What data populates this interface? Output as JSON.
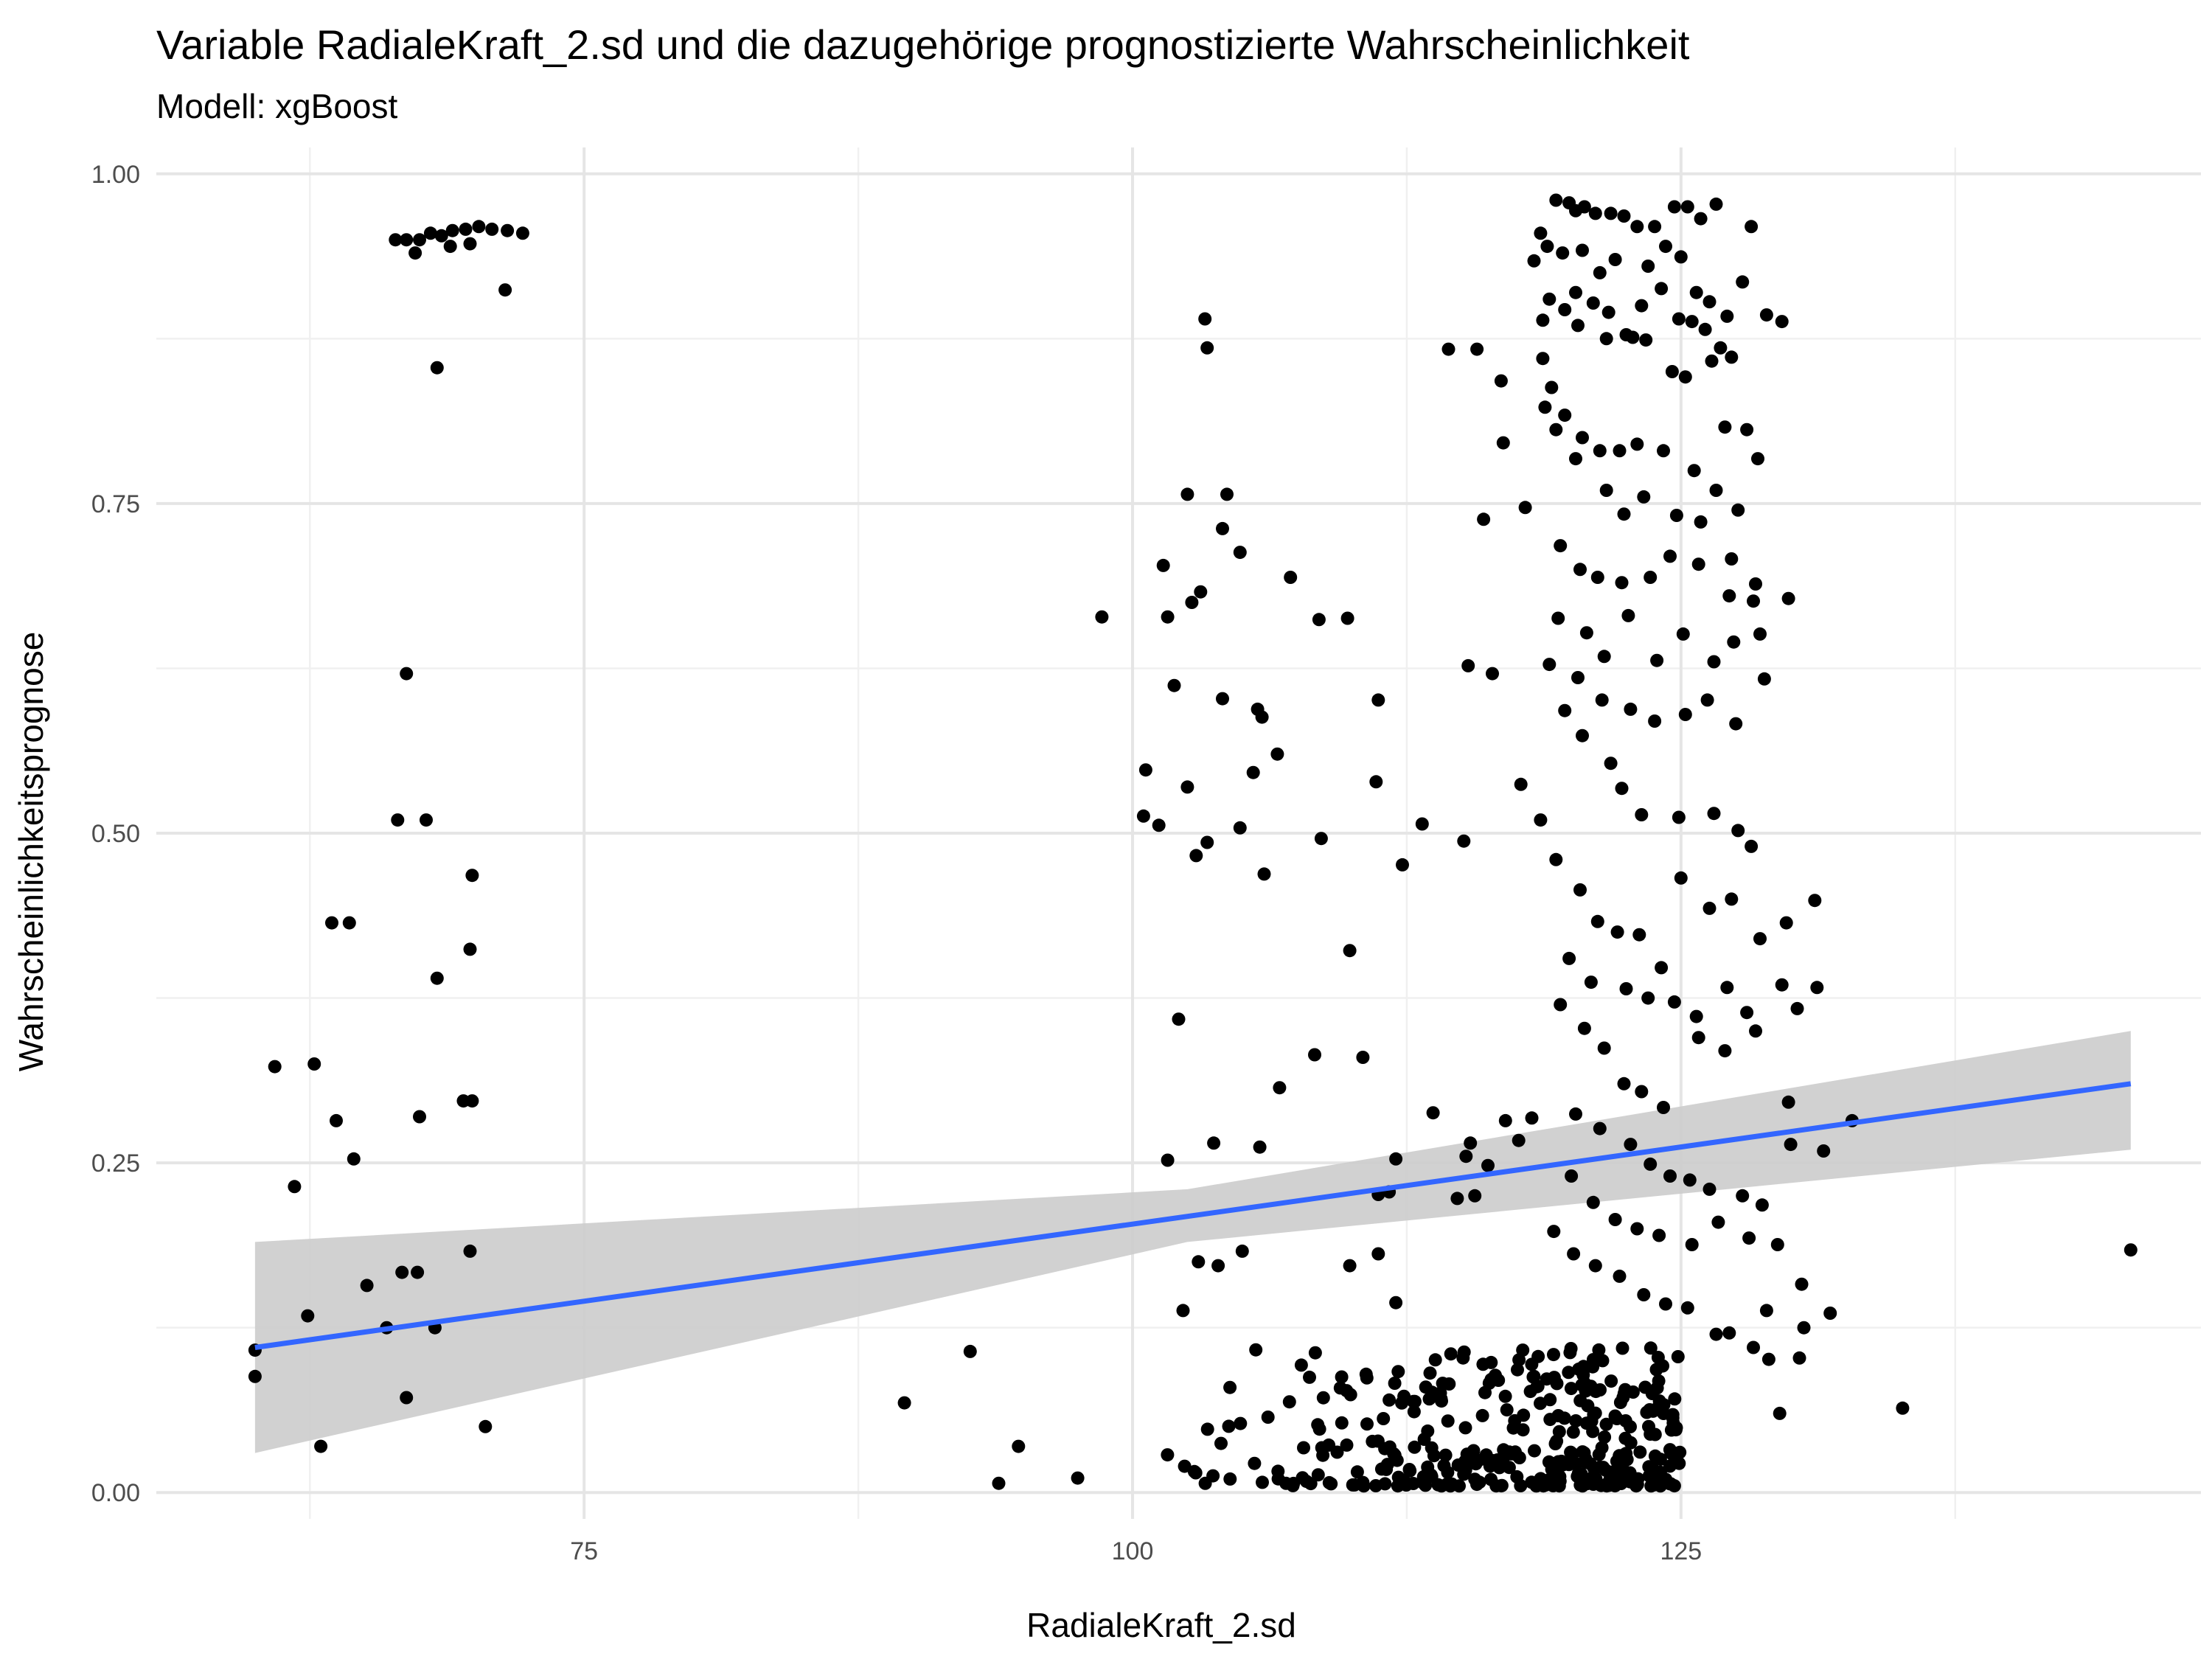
{
  "chart_data": {
    "type": "scatter",
    "title": "Variable RadialeKraft_2.sd und die dazugehörige prognostizierte Wahrscheinlichkeit",
    "subtitle": "Modell: xgBoost",
    "xlabel": "RadialeKraft_2.sd",
    "ylabel": "Wahrscheinlichkeitsprognose",
    "xlim": [
      55.5,
      148.7
    ],
    "ylim": [
      -0.02,
      1.02
    ],
    "x_ticks": [
      75,
      100,
      125
    ],
    "x_tick_labels": [
      "75",
      "100",
      "125"
    ],
    "y_ticks": [
      0,
      0.25,
      0.5,
      0.75,
      1
    ],
    "y_tick_labels": [
      "0.00",
      "0.25",
      "0.50",
      "0.75",
      "1.00"
    ],
    "grid": true,
    "point_color": "#000000",
    "trend_color": "#3366ff",
    "band_color": "#cccccc",
    "trend_line": {
      "x": [
        60,
        145.5
      ],
      "y": [
        0.11,
        0.31
      ]
    },
    "confidence_band": {
      "x": [
        60,
        102.5,
        145.5
      ],
      "lower": [
        0.03,
        0.19,
        0.26
      ],
      "upper": [
        0.19,
        0.23,
        0.35
      ]
    },
    "points": [
      [
        66.4,
        0.95
      ],
      [
        66.9,
        0.95
      ],
      [
        67.5,
        0.95
      ],
      [
        68.0,
        0.955
      ],
      [
        68.5,
        0.953
      ],
      [
        69.0,
        0.957
      ],
      [
        69.6,
        0.958
      ],
      [
        70.2,
        0.96
      ],
      [
        70.8,
        0.958
      ],
      [
        71.5,
        0.957
      ],
      [
        72.2,
        0.955
      ],
      [
        67.3,
        0.94
      ],
      [
        68.9,
        0.945
      ],
      [
        69.8,
        0.947
      ],
      [
        71.4,
        0.912
      ],
      [
        68.3,
        0.853
      ],
      [
        66.9,
        0.621
      ],
      [
        66.5,
        0.51
      ],
      [
        67.8,
        0.51
      ],
      [
        69.9,
        0.468
      ],
      [
        69.8,
        0.412
      ],
      [
        68.3,
        0.39
      ],
      [
        63.5,
        0.432
      ],
      [
        64.3,
        0.432
      ],
      [
        60.9,
        0.323
      ],
      [
        62.7,
        0.325
      ],
      [
        63.7,
        0.282
      ],
      [
        64.5,
        0.253
      ],
      [
        61.8,
        0.232
      ],
      [
        69.5,
        0.297
      ],
      [
        69.9,
        0.297
      ],
      [
        67.5,
        0.285
      ],
      [
        69.8,
        0.183
      ],
      [
        66.7,
        0.167
      ],
      [
        67.4,
        0.167
      ],
      [
        65.1,
        0.157
      ],
      [
        66.0,
        0.125
      ],
      [
        68.2,
        0.125
      ],
      [
        60.0,
        0.108
      ],
      [
        60.0,
        0.088
      ],
      [
        62.4,
        0.134
      ],
      [
        66.9,
        0.072
      ],
      [
        70.5,
        0.05
      ],
      [
        63.0,
        0.035
      ],
      [
        98.6,
        0.664
      ],
      [
        102.5,
        0.757
      ],
      [
        104.3,
        0.757
      ],
      [
        103.3,
        0.89
      ],
      [
        103.4,
        0.868
      ],
      [
        103.1,
        0.683
      ],
      [
        102.7,
        0.675
      ],
      [
        101.4,
        0.703
      ],
      [
        101.6,
        0.664
      ],
      [
        104.9,
        0.713
      ],
      [
        104.1,
        0.731
      ],
      [
        107.2,
        0.694
      ],
      [
        108.5,
        0.662
      ],
      [
        109.8,
        0.663
      ],
      [
        101.9,
        0.612
      ],
      [
        104.1,
        0.602
      ],
      [
        105.7,
        0.594
      ],
      [
        105.9,
        0.588
      ],
      [
        106.6,
        0.56
      ],
      [
        100.6,
        0.548
      ],
      [
        102.5,
        0.535
      ],
      [
        105.5,
        0.546
      ],
      [
        100.5,
        0.513
      ],
      [
        101.2,
        0.506
      ],
      [
        103.4,
        0.493
      ],
      [
        102.9,
        0.483
      ],
      [
        104.9,
        0.504
      ],
      [
        108.6,
        0.496
      ],
      [
        106.0,
        0.469
      ],
      [
        111.2,
        0.601
      ],
      [
        111.1,
        0.539
      ],
      [
        113.2,
        0.507
      ],
      [
        112.3,
        0.476
      ],
      [
        115.1,
        0.494
      ],
      [
        109.9,
        0.411
      ],
      [
        102.1,
        0.359
      ],
      [
        108.3,
        0.332
      ],
      [
        110.5,
        0.33
      ],
      [
        106.7,
        0.307
      ],
      [
        101.6,
        0.252
      ],
      [
        103.7,
        0.265
      ],
      [
        105.8,
        0.262
      ],
      [
        113.7,
        0.288
      ],
      [
        112.0,
        0.253
      ],
      [
        103.0,
        0.175
      ],
      [
        103.9,
        0.172
      ],
      [
        105.0,
        0.183
      ],
      [
        111.7,
        0.228
      ],
      [
        111.2,
        0.226
      ],
      [
        109.9,
        0.172
      ],
      [
        111.2,
        0.181
      ],
      [
        112.0,
        0.144
      ],
      [
        102.3,
        0.138
      ],
      [
        92.6,
        0.107
      ],
      [
        89.6,
        0.068
      ],
      [
        94.8,
        0.035
      ],
      [
        93.9,
        0.007
      ],
      [
        97.5,
        0.011
      ],
      [
        114.4,
        0.867
      ],
      [
        115.7,
        0.867
      ],
      [
        116.0,
        0.738
      ],
      [
        116.9,
        0.796
      ],
      [
        116.4,
        0.621
      ],
      [
        115.3,
        0.627
      ],
      [
        117.9,
        0.747
      ],
      [
        118.7,
        0.86
      ],
      [
        119.1,
        0.838
      ],
      [
        116.8,
        0.843
      ],
      [
        117.7,
        0.537
      ],
      [
        117.0,
        0.282
      ],
      [
        115.4,
        0.265
      ],
      [
        115.2,
        0.255
      ],
      [
        116.2,
        0.248
      ],
      [
        114.8,
        0.223
      ],
      [
        115.6,
        0.225
      ],
      [
        117.6,
        0.267
      ],
      [
        118.2,
        0.284
      ],
      [
        119.3,
        0.98
      ],
      [
        119.9,
        0.978
      ],
      [
        120.2,
        0.972
      ],
      [
        120.6,
        0.975
      ],
      [
        121.1,
        0.97
      ],
      [
        121.8,
        0.97
      ],
      [
        122.4,
        0.968
      ],
      [
        123.0,
        0.96
      ],
      [
        123.8,
        0.96
      ],
      [
        124.7,
        0.975
      ],
      [
        125.3,
        0.975
      ],
      [
        125.9,
        0.966
      ],
      [
        126.6,
        0.977
      ],
      [
        128.2,
        0.96
      ],
      [
        118.6,
        0.955
      ],
      [
        118.9,
        0.945
      ],
      [
        119.6,
        0.94
      ],
      [
        120.5,
        0.942
      ],
      [
        121.3,
        0.925
      ],
      [
        122.0,
        0.935
      ],
      [
        123.5,
        0.93
      ],
      [
        124.3,
        0.945
      ],
      [
        125.0,
        0.937
      ],
      [
        125.7,
        0.91
      ],
      [
        126.3,
        0.903
      ],
      [
        127.1,
        0.892
      ],
      [
        127.8,
        0.918
      ],
      [
        118.3,
        0.934
      ],
      [
        119.0,
        0.905
      ],
      [
        119.7,
        0.897
      ],
      [
        120.2,
        0.91
      ],
      [
        121.0,
        0.902
      ],
      [
        121.7,
        0.895
      ],
      [
        122.5,
        0.878
      ],
      [
        123.2,
        0.9
      ],
      [
        124.1,
        0.913
      ],
      [
        124.9,
        0.89
      ],
      [
        125.5,
        0.888
      ],
      [
        126.1,
        0.882
      ],
      [
        126.8,
        0.868
      ],
      [
        127.3,
        0.861
      ],
      [
        128.9,
        0.893
      ],
      [
        129.6,
        0.888
      ],
      [
        118.7,
        0.889
      ],
      [
        120.3,
        0.885
      ],
      [
        121.6,
        0.875
      ],
      [
        122.8,
        0.876
      ],
      [
        123.4,
        0.874
      ],
      [
        124.6,
        0.85
      ],
      [
        125.2,
        0.846
      ],
      [
        126.4,
        0.858
      ],
      [
        127.0,
        0.808
      ],
      [
        128.0,
        0.806
      ],
      [
        118.8,
        0.823
      ],
      [
        119.7,
        0.817
      ],
      [
        120.5,
        0.8
      ],
      [
        121.3,
        0.79
      ],
      [
        122.2,
        0.79
      ],
      [
        123.0,
        0.795
      ],
      [
        124.2,
        0.79
      ],
      [
        125.6,
        0.775
      ],
      [
        126.6,
        0.76
      ],
      [
        127.6,
        0.745
      ],
      [
        128.5,
        0.784
      ],
      [
        119.3,
        0.806
      ],
      [
        120.2,
        0.784
      ],
      [
        121.6,
        0.76
      ],
      [
        122.4,
        0.742
      ],
      [
        123.3,
        0.755
      ],
      [
        124.8,
        0.741
      ],
      [
        125.9,
        0.736
      ],
      [
        127.3,
        0.708
      ],
      [
        128.4,
        0.689
      ],
      [
        129.9,
        0.678
      ],
      [
        119.5,
        0.718
      ],
      [
        120.4,
        0.7
      ],
      [
        121.2,
        0.694
      ],
      [
        122.3,
        0.69
      ],
      [
        123.6,
        0.694
      ],
      [
        124.5,
        0.71
      ],
      [
        125.8,
        0.704
      ],
      [
        127.2,
        0.68
      ],
      [
        128.3,
        0.676
      ],
      [
        119.4,
        0.663
      ],
      [
        120.7,
        0.652
      ],
      [
        121.5,
        0.634
      ],
      [
        122.6,
        0.665
      ],
      [
        123.9,
        0.631
      ],
      [
        125.1,
        0.651
      ],
      [
        126.5,
        0.63
      ],
      [
        127.4,
        0.645
      ],
      [
        128.6,
        0.651
      ],
      [
        119.0,
        0.628
      ],
      [
        120.3,
        0.618
      ],
      [
        121.4,
        0.601
      ],
      [
        122.7,
        0.594
      ],
      [
        123.8,
        0.585
      ],
      [
        125.2,
        0.59
      ],
      [
        126.2,
        0.601
      ],
      [
        127.5,
        0.583
      ],
      [
        128.8,
        0.617
      ],
      [
        119.7,
        0.593
      ],
      [
        120.5,
        0.574
      ],
      [
        121.8,
        0.553
      ],
      [
        122.3,
        0.534
      ],
      [
        123.2,
        0.514
      ],
      [
        124.9,
        0.512
      ],
      [
        126.5,
        0.515
      ],
      [
        127.6,
        0.502
      ],
      [
        128.2,
        0.49
      ],
      [
        118.6,
        0.51
      ],
      [
        119.3,
        0.48
      ],
      [
        120.4,
        0.457
      ],
      [
        121.2,
        0.433
      ],
      [
        122.1,
        0.425
      ],
      [
        123.1,
        0.423
      ],
      [
        124.1,
        0.398
      ],
      [
        125.0,
        0.466
      ],
      [
        126.3,
        0.443
      ],
      [
        127.3,
        0.45
      ],
      [
        128.6,
        0.42
      ],
      [
        129.8,
        0.432
      ],
      [
        131.1,
        0.449
      ],
      [
        119.9,
        0.405
      ],
      [
        120.9,
        0.387
      ],
      [
        122.5,
        0.382
      ],
      [
        123.5,
        0.375
      ],
      [
        124.7,
        0.372
      ],
      [
        125.7,
        0.361
      ],
      [
        127.1,
        0.383
      ],
      [
        128.0,
        0.364
      ],
      [
        129.6,
        0.385
      ],
      [
        130.3,
        0.367
      ],
      [
        131.2,
        0.383
      ],
      [
        119.5,
        0.37
      ],
      [
        120.6,
        0.352
      ],
      [
        121.5,
        0.337
      ],
      [
        122.4,
        0.31
      ],
      [
        123.2,
        0.304
      ],
      [
        124.2,
        0.292
      ],
      [
        125.8,
        0.345
      ],
      [
        127.0,
        0.335
      ],
      [
        128.4,
        0.35
      ],
      [
        129.9,
        0.296
      ],
      [
        120.2,
        0.287
      ],
      [
        121.3,
        0.276
      ],
      [
        122.7,
        0.264
      ],
      [
        123.6,
        0.249
      ],
      [
        124.5,
        0.24
      ],
      [
        125.4,
        0.237
      ],
      [
        126.3,
        0.23
      ],
      [
        127.8,
        0.225
      ],
      [
        128.7,
        0.218
      ],
      [
        130.0,
        0.264
      ],
      [
        131.5,
        0.259
      ],
      [
        132.8,
        0.282
      ],
      [
        120.0,
        0.24
      ],
      [
        121.0,
        0.22
      ],
      [
        122.0,
        0.207
      ],
      [
        123.0,
        0.2
      ],
      [
        124.0,
        0.195
      ],
      [
        125.5,
        0.188
      ],
      [
        126.7,
        0.205
      ],
      [
        128.1,
        0.193
      ],
      [
        129.4,
        0.188
      ],
      [
        130.5,
        0.158
      ],
      [
        119.2,
        0.198
      ],
      [
        120.1,
        0.181
      ],
      [
        121.1,
        0.172
      ],
      [
        122.2,
        0.164
      ],
      [
        123.3,
        0.15
      ],
      [
        124.3,
        0.143
      ],
      [
        125.3,
        0.14
      ],
      [
        127.2,
        0.121
      ],
      [
        128.9,
        0.138
      ],
      [
        130.6,
        0.125
      ],
      [
        131.8,
        0.136
      ],
      [
        126.6,
        0.12
      ],
      [
        128.3,
        0.11
      ],
      [
        129.0,
        0.101
      ],
      [
        130.4,
        0.102
      ],
      [
        129.5,
        0.06
      ],
      [
        135.1,
        0.064
      ],
      [
        145.5,
        0.184
      ]
    ],
    "dense_cluster": {
      "x_range": [
        100.5,
        125.0
      ],
      "y_range": [
        0.005,
        0.11
      ],
      "count": 360,
      "seed": 12345
    }
  }
}
